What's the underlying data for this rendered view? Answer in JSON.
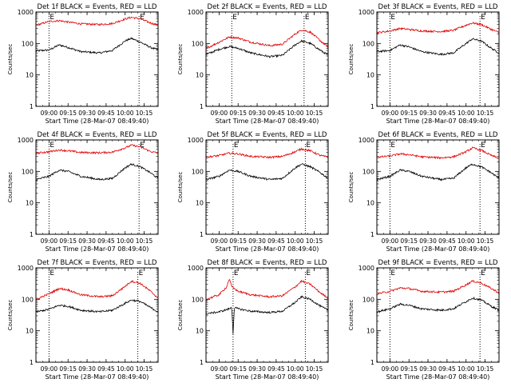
{
  "figure": {
    "ylabel": "Counts/sec",
    "xlabel": "Start Time (28-Mar-07 08:49:40)",
    "x_ticks": [
      "09:00",
      "09:15",
      "09:30",
      "09:45",
      "10:00",
      "10:15"
    ],
    "y_ticks": [
      "1",
      "10",
      "100",
      "1000"
    ],
    "event_marker_label": "E",
    "colors": {
      "events": "#000000",
      "lld": "#e00000"
    }
  },
  "chart_data": [
    {
      "type": "line",
      "title": "Det 1f BLACK = Events, RED = LLD",
      "xlabel": "Start Time (28-Mar-07 08:49:40)",
      "ylabel": "Counts/sec",
      "x_range": [
        "08:49:40",
        "10:26"
      ],
      "y_scale": "log",
      "ylim": [
        1,
        1000
      ],
      "markers": [
        "09:00",
        "10:11"
      ],
      "series": [
        {
          "name": "Events",
          "color": "black",
          "x": [
            "08:50",
            "09:00",
            "09:08",
            "09:15",
            "09:25",
            "09:40",
            "09:50",
            "10:00",
            "10:05",
            "10:12",
            "10:20",
            "10:26"
          ],
          "y": [
            58,
            62,
            90,
            75,
            55,
            50,
            60,
            120,
            145,
            110,
            75,
            62
          ]
        },
        {
          "name": "LLD",
          "color": "red",
          "x": [
            "08:50",
            "09:00",
            "09:08",
            "09:15",
            "09:25",
            "09:40",
            "09:50",
            "10:00",
            "10:05",
            "10:12",
            "10:20",
            "10:26"
          ],
          "y": [
            380,
            500,
            530,
            480,
            420,
            400,
            430,
            600,
            680,
            600,
            450,
            380
          ]
        }
      ]
    },
    {
      "type": "line",
      "title": "Det 2f BLACK = Events, RED = LLD",
      "xlabel": "Start Time (28-Mar-07 08:49:40)",
      "ylabel": "Counts/sec",
      "x_range": [
        "08:49:40",
        "10:26"
      ],
      "y_scale": "log",
      "ylim": [
        1,
        1000
      ],
      "markers": [
        "09:10",
        "10:07"
      ],
      "series": [
        {
          "name": "Events",
          "color": "black",
          "x": [
            "08:50",
            "09:00",
            "09:08",
            "09:15",
            "09:25",
            "09:40",
            "09:50",
            "10:00",
            "10:05",
            "10:12",
            "10:20",
            "10:26"
          ],
          "y": [
            45,
            65,
            80,
            70,
            50,
            38,
            42,
            90,
            120,
            100,
            60,
            42
          ]
        },
        {
          "name": "LLD",
          "color": "red",
          "x": [
            "08:50",
            "09:00",
            "09:08",
            "09:15",
            "09:25",
            "09:40",
            "09:50",
            "10:00",
            "10:05",
            "10:12",
            "10:20",
            "10:26"
          ],
          "y": [
            70,
            110,
            160,
            150,
            110,
            85,
            95,
            200,
            270,
            230,
            120,
            75
          ]
        }
      ]
    },
    {
      "type": "line",
      "title": "Det 3f BLACK = Events, RED = LLD",
      "xlabel": "Start Time (28-Mar-07 08:49:40)",
      "ylabel": "Counts/sec",
      "x_range": [
        "08:49:40",
        "10:26"
      ],
      "y_scale": "log",
      "ylim": [
        1,
        1000
      ],
      "markers": [
        "09:00",
        "10:11"
      ],
      "series": [
        {
          "name": "Events",
          "color": "black",
          "x": [
            "08:50",
            "09:00",
            "09:08",
            "09:15",
            "09:25",
            "09:40",
            "09:50",
            "10:00",
            "10:05",
            "10:12",
            "10:20",
            "10:26"
          ],
          "y": [
            55,
            60,
            90,
            78,
            55,
            45,
            50,
            100,
            140,
            120,
            70,
            50
          ]
        },
        {
          "name": "LLD",
          "color": "red",
          "x": [
            "08:50",
            "09:00",
            "09:08",
            "09:15",
            "09:25",
            "09:40",
            "09:50",
            "10:00",
            "10:05",
            "10:12",
            "10:20",
            "10:26"
          ],
          "y": [
            220,
            250,
            300,
            280,
            250,
            240,
            260,
            380,
            450,
            400,
            280,
            220
          ]
        }
      ]
    },
    {
      "type": "line",
      "title": "Det 4f BLACK = Events, RED = LLD",
      "xlabel": "Start Time (28-Mar-07 08:49:40)",
      "ylabel": "Counts/sec",
      "x_range": [
        "08:49:40",
        "10:26"
      ],
      "y_scale": "log",
      "ylim": [
        1,
        1000
      ],
      "markers": [
        "09:00",
        "10:11"
      ],
      "series": [
        {
          "name": "Events",
          "color": "black",
          "x": [
            "08:50",
            "09:00",
            "09:08",
            "09:15",
            "09:25",
            "09:40",
            "09:50",
            "10:00",
            "10:05",
            "10:12",
            "10:20",
            "10:26"
          ],
          "y": [
            55,
            70,
            110,
            100,
            70,
            55,
            60,
            130,
            170,
            140,
            90,
            60
          ]
        },
        {
          "name": "LLD",
          "color": "red",
          "x": [
            "08:50",
            "09:00",
            "09:08",
            "09:15",
            "09:25",
            "09:40",
            "09:50",
            "10:00",
            "10:05",
            "10:12",
            "10:20",
            "10:26"
          ],
          "y": [
            380,
            420,
            480,
            450,
            400,
            390,
            410,
            560,
            680,
            600,
            430,
            380
          ]
        }
      ]
    },
    {
      "type": "line",
      "title": "Det 5f BLACK = Events, RED = LLD",
      "xlabel": "Start Time (28-Mar-07 08:49:40)",
      "ylabel": "Counts/sec",
      "x_range": [
        "08:49:40",
        "10:26"
      ],
      "y_scale": "log",
      "ylim": [
        1,
        1000
      ],
      "markers": [
        "09:11",
        "10:08"
      ],
      "series": [
        {
          "name": "Events",
          "color": "black",
          "x": [
            "08:50",
            "09:00",
            "09:08",
            "09:15",
            "09:25",
            "09:40",
            "09:50",
            "10:00",
            "10:05",
            "10:12",
            "10:20",
            "10:26"
          ],
          "y": [
            55,
            70,
            110,
            100,
            70,
            55,
            60,
            130,
            170,
            140,
            90,
            60
          ]
        },
        {
          "name": "LLD",
          "color": "red",
          "x": [
            "08:50",
            "09:00",
            "09:08",
            "09:15",
            "09:25",
            "09:40",
            "09:50",
            "10:00",
            "10:05",
            "10:12",
            "10:20",
            "10:26"
          ],
          "y": [
            280,
            320,
            380,
            360,
            300,
            280,
            300,
            420,
            520,
            450,
            320,
            280
          ]
        }
      ]
    },
    {
      "type": "line",
      "title": "Det 6f BLACK = Events, RED = LLD",
      "xlabel": "Start Time (28-Mar-07 08:49:40)",
      "ylabel": "Counts/sec",
      "x_range": [
        "08:49:40",
        "10:26"
      ],
      "y_scale": "log",
      "ylim": [
        1,
        1000
      ],
      "markers": [
        "09:00",
        "10:11"
      ],
      "series": [
        {
          "name": "Events",
          "color": "black",
          "x": [
            "08:50",
            "09:00",
            "09:08",
            "09:15",
            "09:25",
            "09:40",
            "09:50",
            "10:00",
            "10:05",
            "10:12",
            "10:20",
            "10:26"
          ],
          "y": [
            55,
            70,
            110,
            100,
            70,
            55,
            60,
            130,
            170,
            140,
            90,
            60
          ]
        },
        {
          "name": "LLD",
          "color": "red",
          "x": [
            "08:50",
            "09:00",
            "09:08",
            "09:15",
            "09:25",
            "09:40",
            "09:50",
            "10:00",
            "10:05",
            "10:12",
            "10:20",
            "10:26"
          ],
          "y": [
            280,
            310,
            360,
            340,
            290,
            270,
            290,
            420,
            560,
            470,
            320,
            260
          ]
        }
      ]
    },
    {
      "type": "line",
      "title": "Det 7f BLACK = Events, RED = LLD",
      "xlabel": "Start Time (28-Mar-07 08:49:40)",
      "ylabel": "Counts/sec",
      "x_range": [
        "08:49:40",
        "10:26"
      ],
      "y_scale": "log",
      "ylim": [
        1,
        1000
      ],
      "markers": [
        "09:00",
        "10:10"
      ],
      "series": [
        {
          "name": "Events",
          "color": "black",
          "x": [
            "08:50",
            "09:00",
            "09:08",
            "09:15",
            "09:25",
            "09:40",
            "09:50",
            "10:00",
            "10:05",
            "10:12",
            "10:20",
            "10:26"
          ],
          "y": [
            40,
            48,
            65,
            60,
            45,
            40,
            45,
            75,
            95,
            85,
            55,
            40
          ]
        },
        {
          "name": "LLD",
          "color": "red",
          "x": [
            "08:50",
            "09:00",
            "09:08",
            "09:15",
            "09:25",
            "09:40",
            "09:50",
            "10:00",
            "10:05",
            "10:12",
            "10:20",
            "10:26"
          ],
          "y": [
            100,
            150,
            220,
            200,
            140,
            120,
            130,
            260,
            380,
            320,
            180,
            110
          ]
        }
      ]
    },
    {
      "type": "line",
      "title": "Det 8f BLACK = Events, RED = LLD",
      "xlabel": "Start Time (28-Mar-07 08:49:40)",
      "ylabel": "Counts/sec",
      "x_range": [
        "08:49:40",
        "10:26"
      ],
      "y_scale": "log",
      "ylim": [
        1,
        1000
      ],
      "markers": [
        "09:11",
        "10:08"
      ],
      "series": [
        {
          "name": "Events",
          "color": "black",
          "x": [
            "08:50",
            "09:00",
            "09:08",
            "09:10",
            "09:11",
            "09:12",
            "09:15",
            "09:25",
            "09:40",
            "09:50",
            "10:00",
            "10:05",
            "10:12",
            "10:20",
            "10:26"
          ],
          "y": [
            35,
            40,
            50,
            55,
            8,
            55,
            50,
            42,
            38,
            42,
            80,
            120,
            100,
            60,
            45
          ]
        },
        {
          "name": "LLD",
          "color": "red",
          "x": [
            "08:50",
            "09:00",
            "09:06",
            "09:08",
            "09:10",
            "09:15",
            "09:25",
            "09:40",
            "09:50",
            "10:00",
            "10:05",
            "10:12",
            "10:20",
            "10:26"
          ],
          "y": [
            100,
            140,
            250,
            450,
            250,
            180,
            140,
            120,
            130,
            250,
            380,
            300,
            160,
            110
          ]
        }
      ]
    },
    {
      "type": "line",
      "title": "Det 9f BLACK = Events, RED = LLD",
      "xlabel": "Start Time (28-Mar-07 08:49:40)",
      "ylabel": "Counts/sec",
      "x_range": [
        "08:49:40",
        "10:26"
      ],
      "y_scale": "log",
      "ylim": [
        1,
        1000
      ],
      "markers": [
        "09:00",
        "10:11"
      ],
      "series": [
        {
          "name": "Events",
          "color": "black",
          "x": [
            "08:50",
            "09:00",
            "09:08",
            "09:15",
            "09:25",
            "09:40",
            "09:50",
            "10:00",
            "10:05",
            "10:12",
            "10:20",
            "10:26"
          ],
          "y": [
            40,
            50,
            70,
            65,
            50,
            45,
            50,
            85,
            110,
            95,
            60,
            45
          ]
        },
        {
          "name": "LLD",
          "color": "red",
          "x": [
            "08:50",
            "09:00",
            "09:08",
            "09:15",
            "09:25",
            "09:40",
            "09:50",
            "10:00",
            "10:05",
            "10:12",
            "10:20",
            "10:26"
          ],
          "y": [
            150,
            180,
            230,
            220,
            180,
            170,
            180,
            290,
            380,
            330,
            220,
            160
          ]
        }
      ]
    }
  ]
}
